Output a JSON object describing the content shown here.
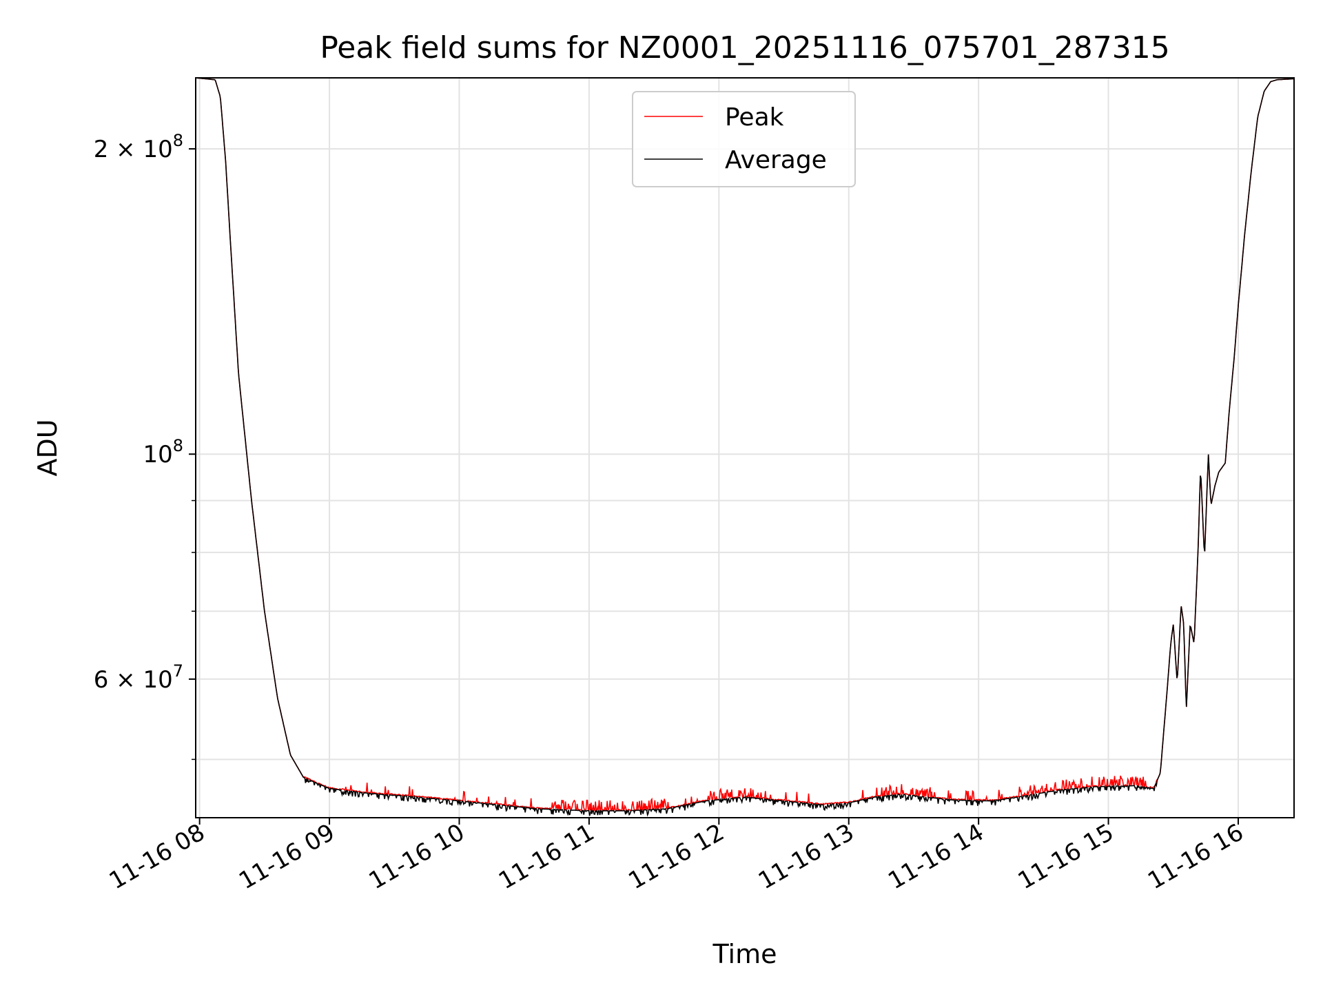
{
  "chart_data": {
    "type": "line",
    "title": "Peak field sums for NZ0001_20251116_075701_287315",
    "xlabel": "Time",
    "ylabel": "ADU",
    "yscale": "log",
    "xlim_hours": [
      7.97,
      16.43
    ],
    "ylim": [
      43800000,
      235000000
    ],
    "grid": true,
    "legend_location": "upper center",
    "x_ticks": [
      {
        "value": 8,
        "label": "11-16 08"
      },
      {
        "value": 9,
        "label": "11-16 09"
      },
      {
        "value": 10,
        "label": "11-16 10"
      },
      {
        "value": 11,
        "label": "11-16 11"
      },
      {
        "value": 12,
        "label": "11-16 12"
      },
      {
        "value": 13,
        "label": "11-16 13"
      },
      {
        "value": 14,
        "label": "11-16 14"
      },
      {
        "value": 15,
        "label": "11-16 15"
      },
      {
        "value": 16,
        "label": "11-16 16"
      }
    ],
    "y_major_ticks": [
      {
        "value": 60000000,
        "base": "6 × 10",
        "exp": "7"
      },
      {
        "value": 100000000,
        "base": "10",
        "exp": "8"
      },
      {
        "value": 200000000,
        "base": "2 × 10",
        "exp": "8"
      }
    ],
    "y_minor_ticks": [
      50000000,
      70000000,
      80000000,
      90000000
    ],
    "series": [
      {
        "name": "Peak",
        "color": "#ff0000"
      },
      {
        "name": "Average",
        "color": "#000000"
      }
    ],
    "average_curve": [
      [
        7.97,
        235000000
      ],
      [
        8.12,
        234000000
      ],
      [
        8.16,
        225000000
      ],
      [
        8.2,
        195000000
      ],
      [
        8.24,
        160000000
      ],
      [
        8.3,
        120000000
      ],
      [
        8.4,
        90000000
      ],
      [
        8.5,
        70000000
      ],
      [
        8.6,
        57500000
      ],
      [
        8.7,
        50500000
      ],
      [
        8.8,
        48000000
      ],
      [
        9.0,
        46800000
      ],
      [
        9.3,
        46300000
      ],
      [
        9.6,
        46000000
      ],
      [
        10.0,
        45500000
      ],
      [
        10.3,
        45100000
      ],
      [
        10.6,
        44700000
      ],
      [
        11.0,
        44500000
      ],
      [
        11.3,
        44500000
      ],
      [
        11.6,
        44700000
      ],
      [
        11.9,
        45500000
      ],
      [
        12.2,
        45900000
      ],
      [
        12.5,
        45500000
      ],
      [
        12.8,
        45100000
      ],
      [
        13.0,
        45300000
      ],
      [
        13.2,
        45900000
      ],
      [
        13.4,
        46200000
      ],
      [
        13.6,
        45900000
      ],
      [
        13.8,
        45600000
      ],
      [
        14.1,
        45500000
      ],
      [
        14.3,
        45900000
      ],
      [
        14.6,
        46600000
      ],
      [
        14.9,
        47000000
      ],
      [
        15.2,
        47100000
      ],
      [
        15.35,
        46800000
      ],
      [
        15.4,
        48500000
      ],
      [
        15.45,
        58000000
      ],
      [
        15.48,
        65000000
      ],
      [
        15.5,
        68000000
      ],
      [
        15.53,
        59500000
      ],
      [
        15.56,
        71000000
      ],
      [
        15.58,
        68000000
      ],
      [
        15.6,
        56000000
      ],
      [
        15.63,
        68000000
      ],
      [
        15.66,
        65000000
      ],
      [
        15.69,
        80000000
      ],
      [
        15.71,
        97000000
      ],
      [
        15.74,
        79000000
      ],
      [
        15.77,
        100000000
      ],
      [
        15.79,
        89000000
      ],
      [
        15.82,
        93000000
      ],
      [
        15.85,
        96000000
      ],
      [
        15.9,
        98000000
      ],
      [
        15.93,
        110000000
      ],
      [
        15.97,
        125000000
      ],
      [
        16.0,
        140000000
      ],
      [
        16.05,
        165000000
      ],
      [
        16.1,
        190000000
      ],
      [
        16.15,
        215000000
      ],
      [
        16.2,
        228000000
      ],
      [
        16.25,
        233000000
      ],
      [
        16.3,
        234000000
      ],
      [
        16.43,
        234500000
      ]
    ]
  }
}
